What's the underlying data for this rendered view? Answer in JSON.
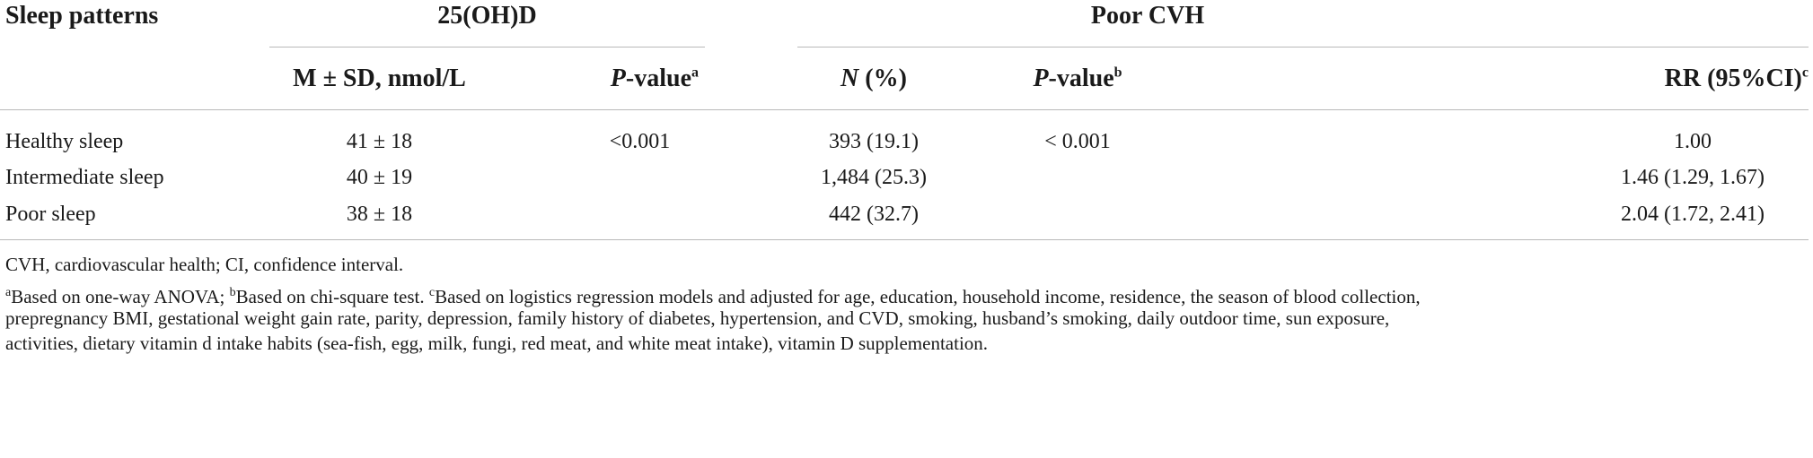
{
  "table": {
    "group_header": {
      "row_label": "Sleep patterns",
      "vitd": "25(OH)D",
      "cvh": "Poor CVH"
    },
    "sub_header": {
      "mean_sd": "M ± SD, nmol/L",
      "pvalue_a_italic": "P",
      "pvalue_a_rest": "-value",
      "pvalue_a_sup": "a",
      "n_italic": "N",
      "n_rest": " (%)",
      "pvalue_b_italic": "P",
      "pvalue_b_rest": "-value",
      "pvalue_b_sup": "b",
      "rr": "RR (95%CI)",
      "rr_sup": "c"
    },
    "rows": [
      {
        "label": "Healthy sleep",
        "mean_sd": "41 ± 18",
        "p_a": "<0.001",
        "n_pct": "393 (19.1)",
        "p_b": "< 0.001",
        "rr": "1.00"
      },
      {
        "label": "Intermediate sleep",
        "mean_sd": "40 ± 19",
        "p_a": "",
        "n_pct": "1,484 (25.3)",
        "p_b": "",
        "rr": "1.46 (1.29, 1.67)"
      },
      {
        "label": "Poor sleep",
        "mean_sd": "38 ± 18",
        "p_a": "",
        "n_pct": "442 (32.7)",
        "p_b": "",
        "rr": "2.04 (1.72, 2.41)"
      }
    ]
  },
  "footnotes": {
    "abbrev": "CVH, cardiovascular health; CI, confidence interval.",
    "a_sup": "a",
    "a_text": "Based on one-way ANOVA; ",
    "b_sup": "b",
    "b_text": "Based on chi-square test. ",
    "c_sup": "c",
    "c_text": "Based on logistics regression models and adjusted for age, education, household income, residence, the season of blood collection,",
    "line3": "prepregnancy BMI, gestational weight gain rate, parity, depression, family history of diabetes, hypertension, and CVD, smoking, husband’s smoking, daily outdoor time, sun exposure,",
    "line4": "activities, dietary vitamin d intake habits (sea-fish, egg, milk, fungi, red meat, and white meat intake), vitamin D supplementation."
  }
}
